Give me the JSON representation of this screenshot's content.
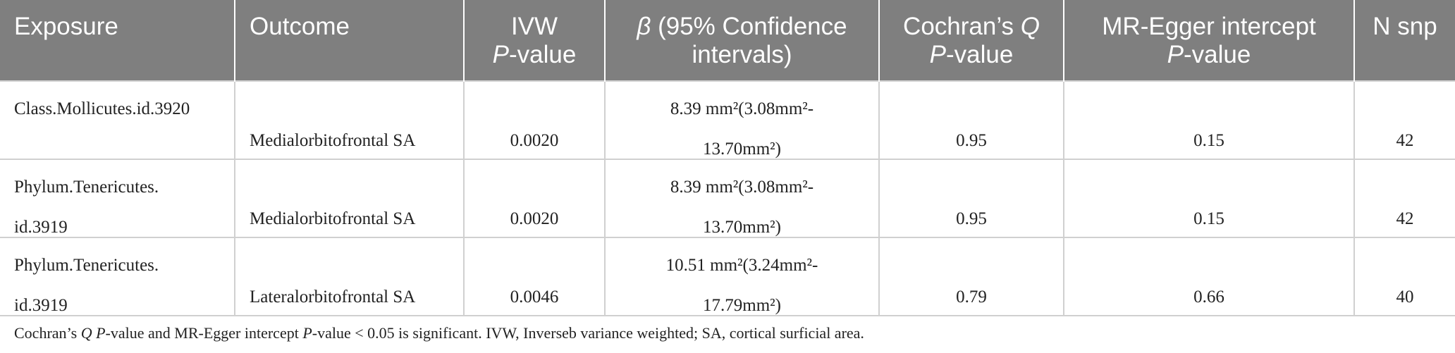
{
  "headers": {
    "exposure": "Exposure",
    "outcome": "Outcome",
    "ivw_line1": "IVW",
    "ivw_p": "P",
    "ivw_line2": "-value",
    "beta_sym": "β",
    "beta_line1": " (95% Confidence",
    "beta_line2": "intervals)",
    "cochran_line1": "Cochran’s ",
    "cochran_q": "Q",
    "cochran_p": "P",
    "cochran_line2": "-value",
    "egger_line1": "MR-Egger intercept",
    "egger_p": "P",
    "egger_line2": "-value",
    "nsnp": "N snp"
  },
  "rows": [
    {
      "exposure": "Class.Mollicutes.id.3920",
      "outcome": "Medialorbitofrontal SA",
      "ivw_p": "0.0020",
      "beta_line1": "8.39 mm²(3.08mm²-",
      "beta_line2": "13.70mm²)",
      "cochran_p": "0.95",
      "egger_p": "0.15",
      "nsnp": "42"
    },
    {
      "exposure": "Phylum.Tenericutes.\nid.3919",
      "outcome": "Medialorbitofrontal SA",
      "ivw_p": "0.0020",
      "beta_line1": "8.39 mm²(3.08mm²-",
      "beta_line2": "13.70mm²)",
      "cochran_p": "0.95",
      "egger_p": "0.15",
      "nsnp": "42"
    },
    {
      "exposure": "Phylum.Tenericutes.\nid.3919",
      "outcome": "Lateralorbitofrontal SA",
      "ivw_p": "0.0046",
      "beta_line1": "10.51 mm²(3.24mm²-",
      "beta_line2": "17.79mm²)",
      "cochran_p": "0.79",
      "egger_p": "0.66",
      "nsnp": "40"
    }
  ],
  "note": {
    "part1": "Cochran’s ",
    "q": "Q",
    "space": " ",
    "p1": "P",
    "part2": "-value and MR-Egger intercept ",
    "p2": "P",
    "part3": "-value < 0.05 is significant. IVW, Inverseb variance weighted; SA, cortical surficial area."
  }
}
